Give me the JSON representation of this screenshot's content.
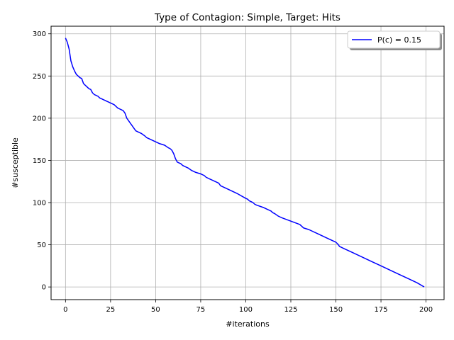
{
  "chart_data": {
    "type": "line",
    "title": "Type of Contagion: Simple, Target: Hits",
    "xlabel": "#iterations",
    "ylabel": "#susceptible",
    "xlim": [
      -8,
      210
    ],
    "ylim": [
      -15,
      309
    ],
    "xticks": [
      0,
      25,
      50,
      75,
      100,
      125,
      150,
      175,
      200
    ],
    "yticks": [
      0,
      50,
      100,
      150,
      200,
      250,
      300
    ],
    "grid": true,
    "legend_position": "top-right",
    "series": [
      {
        "name": "P(c) = 0.15",
        "color": "#0000ff",
        "x": [
          0,
          1,
          2,
          3,
          4,
          5,
          6,
          7,
          8,
          9,
          10,
          11,
          12,
          13,
          14,
          15,
          16,
          17,
          18,
          19,
          20,
          21,
          22,
          23,
          24,
          25,
          26,
          27,
          28,
          29,
          30,
          31,
          32,
          33,
          34,
          35,
          36,
          37,
          38,
          39,
          40,
          42,
          44,
          45,
          46,
          48,
          50,
          52,
          55,
          57,
          58,
          59,
          60,
          61,
          62,
          64,
          65,
          66,
          68,
          70,
          72,
          75,
          77,
          78,
          80,
          85,
          86,
          90,
          95,
          100,
          101,
          102,
          104,
          105,
          106,
          110,
          114,
          115,
          116,
          118,
          119,
          120,
          125,
          130,
          131,
          132,
          135,
          140,
          145,
          150,
          151,
          152,
          155,
          160,
          165,
          170,
          175,
          180,
          185,
          190,
          195,
          199
        ],
        "y": [
          295,
          290,
          282,
          268,
          261,
          256,
          252,
          250,
          248,
          247,
          241,
          239,
          237,
          235,
          234,
          230,
          228,
          227,
          226,
          224,
          223,
          222,
          221,
          220,
          219,
          218,
          217,
          216,
          214,
          212,
          211,
          210,
          209,
          206,
          200,
          197,
          194,
          191,
          188,
          185,
          184,
          182,
          179,
          177,
          176,
          174,
          172,
          170,
          168,
          165,
          164,
          162,
          158,
          152,
          148,
          146,
          144,
          143,
          141,
          138,
          136,
          134,
          132,
          130,
          128,
          123,
          120,
          116,
          111,
          105,
          104,
          102,
          100,
          98,
          97,
          94,
          90,
          88,
          87,
          84,
          83,
          82,
          78,
          74,
          72,
          70,
          68,
          63,
          58,
          53,
          51,
          48,
          45,
          40,
          35,
          30,
          25,
          20,
          15,
          10,
          5,
          0
        ]
      }
    ]
  }
}
